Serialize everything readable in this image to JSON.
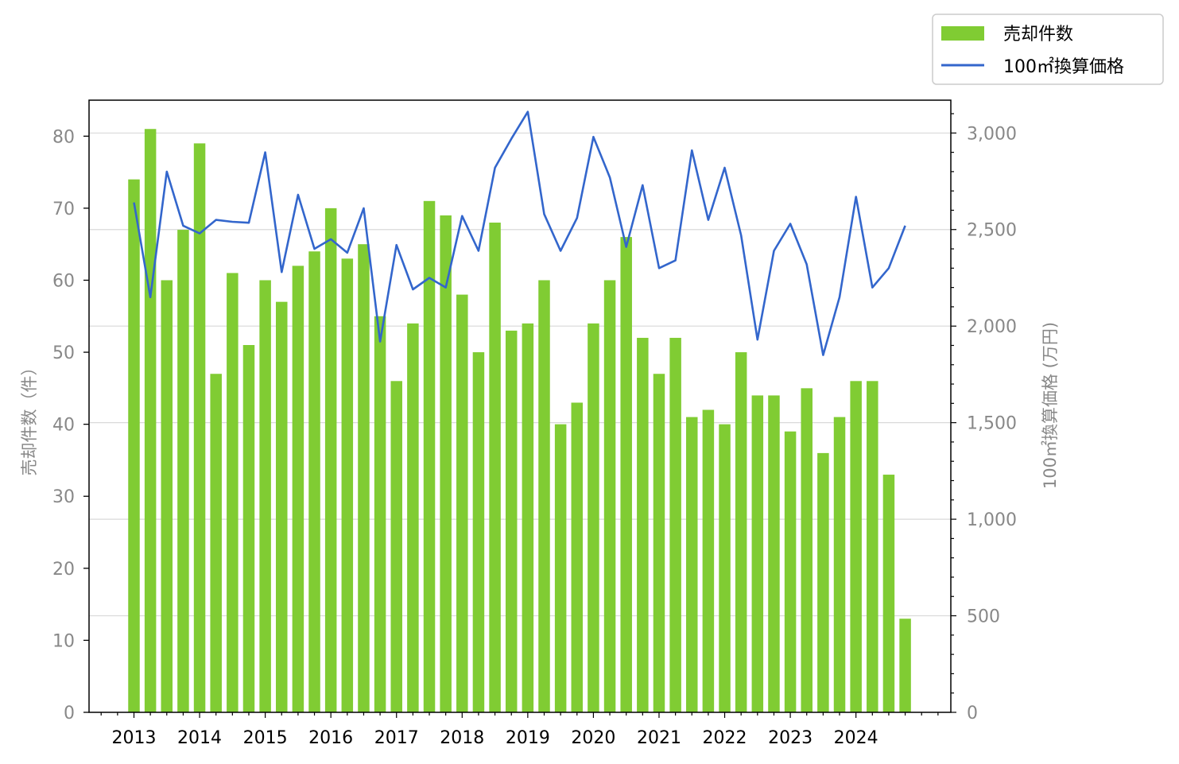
{
  "chart_data": {
    "type": "bar+line",
    "x": [
      "2013Q1",
      "2013Q2",
      "2013Q3",
      "2013Q4",
      "2014Q1",
      "2014Q2",
      "2014Q3",
      "2014Q4",
      "2015Q1",
      "2015Q2",
      "2015Q3",
      "2015Q4",
      "2016Q1",
      "2016Q2",
      "2016Q3",
      "2016Q4",
      "2017Q1",
      "2017Q2",
      "2017Q3",
      "2017Q4",
      "2018Q1",
      "2018Q2",
      "2018Q3",
      "2018Q4",
      "2019Q1",
      "2019Q2",
      "2019Q3",
      "2019Q4",
      "2020Q1",
      "2020Q2",
      "2020Q3",
      "2020Q4",
      "2021Q1",
      "2021Q2",
      "2021Q3",
      "2021Q4",
      "2022Q1",
      "2022Q2",
      "2022Q3",
      "2022Q4",
      "2023Q1",
      "2023Q2",
      "2023Q3",
      "2023Q4",
      "2024Q1",
      "2024Q2",
      "2024Q3",
      "2024Q4"
    ],
    "x_tick_labels": [
      "2013",
      "2014",
      "2015",
      "2016",
      "2017",
      "2018",
      "2019",
      "2020",
      "2021",
      "2022",
      "2023",
      "2024"
    ],
    "series": [
      {
        "name": "売却件数",
        "kind": "bar",
        "axis": "left",
        "color": "#80cc33",
        "values": [
          74,
          81,
          60,
          67,
          79,
          47,
          61,
          51,
          60,
          57,
          62,
          64,
          70,
          63,
          65,
          55,
          46,
          54,
          71,
          69,
          58,
          50,
          68,
          53,
          54,
          60,
          40,
          43,
          54,
          60,
          66,
          52,
          47,
          52,
          41,
          42,
          40,
          50,
          44,
          44,
          39,
          45,
          36,
          41,
          46,
          46,
          33,
          13
        ]
      },
      {
        "name": "100㎡換算価格",
        "kind": "line",
        "axis": "right",
        "color": "#3366cc",
        "values": [
          2640,
          2150,
          2800,
          2520,
          2480,
          2550,
          2540,
          2535,
          2900,
          2280,
          2680,
          2400,
          2450,
          2380,
          2610,
          1920,
          2420,
          2190,
          2250,
          2200,
          2570,
          2390,
          2820,
          2970,
          3110,
          2580,
          2390,
          2560,
          2980,
          2770,
          2410,
          2730,
          2300,
          2340,
          2910,
          2550,
          2820,
          2470,
          1930,
          2390,
          2530,
          2320,
          1850,
          2150,
          2670,
          2200,
          2300,
          2520
        ]
      }
    ],
    "ylabel": "売却件数（件）",
    "y2label": "100㎡換算価格 (万円)",
    "ylim": [
      0,
      85
    ],
    "y_ticks": [
      0,
      10,
      20,
      30,
      40,
      50,
      60,
      70,
      80
    ],
    "y2lim": [
      0,
      3170
    ],
    "y2_ticks": [
      0,
      500,
      1000,
      1500,
      2000,
      2500,
      3000
    ],
    "y2_tick_labels": [
      "0",
      "500",
      "1,000",
      "1,500",
      "2,000",
      "2,500",
      "3,000"
    ],
    "grid": "horizontal, right axis",
    "legend_position": "top-right, outside plot"
  }
}
